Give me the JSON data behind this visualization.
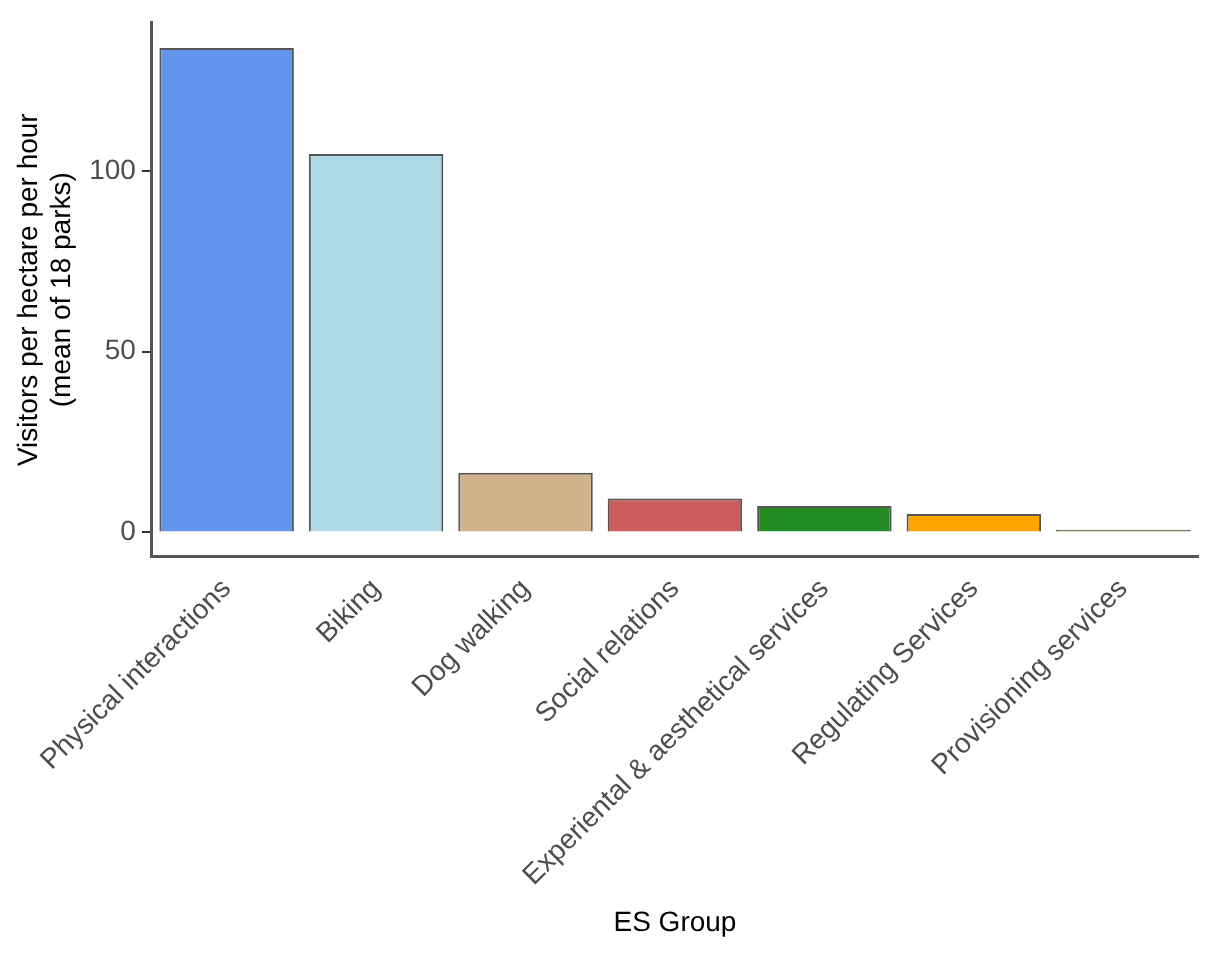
{
  "chart_data": {
    "type": "bar",
    "xlabel": "ES Group",
    "ylabel": "Visitors per hectare per hour\n(mean of 18 parks)",
    "categories": [
      "Physical interactions",
      "Biking",
      "Dog walking",
      "Social relations",
      "Experiental & aesthetical services",
      "Regulating Services",
      "Provisioning services"
    ],
    "values": [
      134,
      104.7,
      16.5,
      9.4,
      7.3,
      5.1,
      0.7
    ],
    "colors": [
      "#6495ed",
      "#add8e6",
      "#d2b48c",
      "#cd5c5c",
      "#228b22",
      "#ffa500",
      "#6b8e23"
    ],
    "ylim": [
      -6.7,
      141
    ],
    "yticks": [
      0,
      50,
      100
    ],
    "grid": false,
    "legend": false
  }
}
